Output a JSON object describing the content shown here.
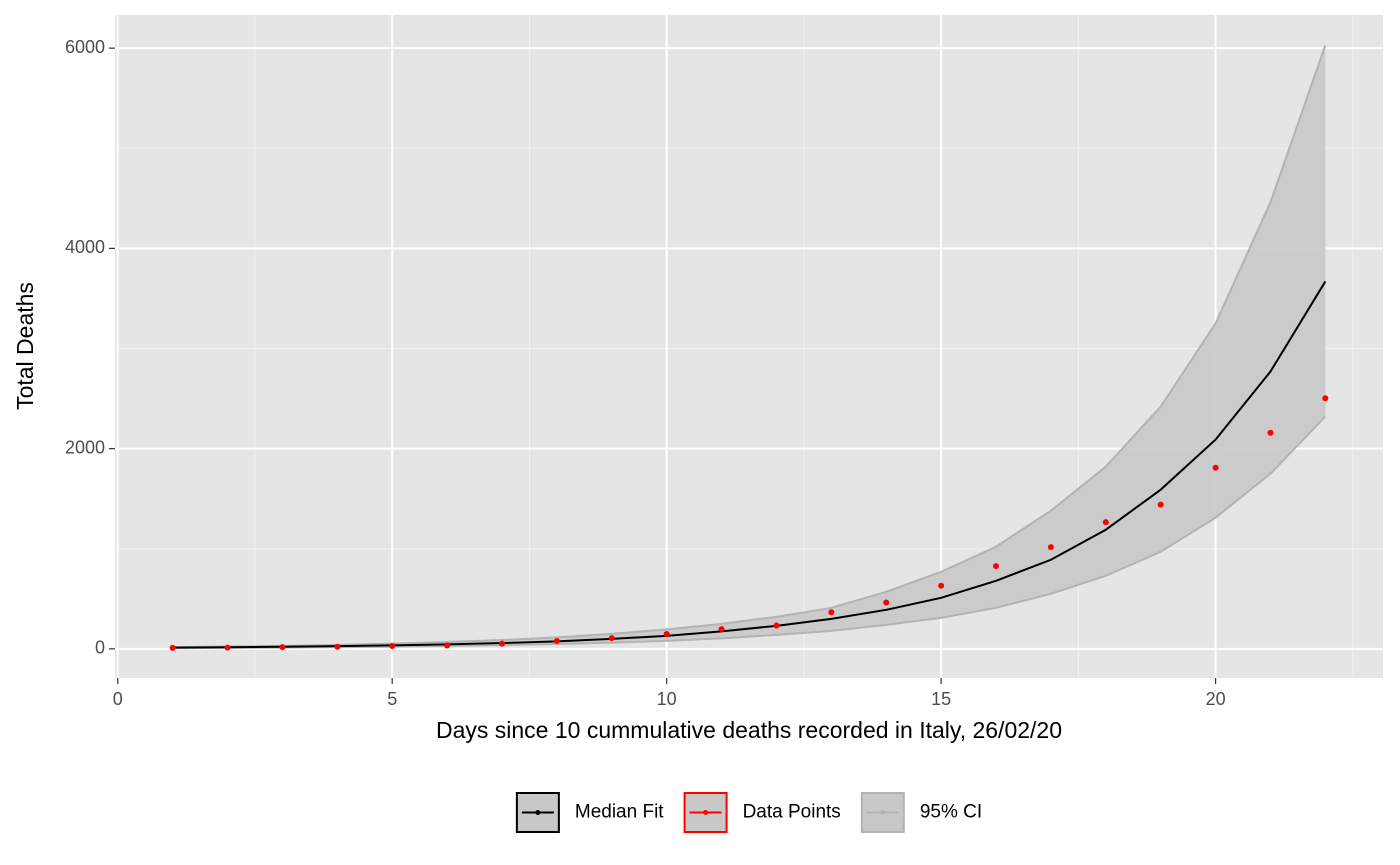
{
  "chart_data": {
    "type": "line",
    "x_label": "Days since 10 cummulative deaths recorded in Italy, 26/02/20",
    "y_label": "Total Deaths",
    "x": [
      1,
      2,
      3,
      4,
      5,
      6,
      7,
      8,
      9,
      10,
      11,
      12,
      13,
      14,
      15,
      16,
      17,
      18,
      19,
      20,
      21,
      22
    ],
    "series": [
      {
        "name": "Median Fit",
        "color": "#000000",
        "style": "line",
        "values": [
          12,
          16,
          21,
          27,
          35,
          45,
          58,
          75,
          100,
          130,
          175,
          230,
          300,
          390,
          510,
          680,
          890,
          1190,
          1590,
          2090,
          2770,
          3670
        ]
      },
      {
        "name": "Data Points",
        "color": "#ff0000",
        "style": "points",
        "values": [
          10,
          12,
          17,
          21,
          29,
          34,
          52,
          79,
          107,
          148,
          197,
          233,
          366,
          463,
          631,
          827,
          1016,
          1266,
          1441,
          1809,
          2158,
          2503
        ]
      },
      {
        "name": "95% CI",
        "color": "#b3b3b3",
        "fill": "#c8c8c8",
        "style": "band",
        "lower": [
          8,
          10,
          13,
          17,
          22,
          29,
          37,
          48,
          62,
          80,
          105,
          140,
          180,
          240,
          310,
          410,
          550,
          730,
          970,
          1310,
          1750,
          2320
        ],
        "upper": [
          17,
          23,
          30,
          40,
          52,
          68,
          88,
          115,
          150,
          195,
          250,
          320,
          410,
          570,
          770,
          1020,
          1380,
          1820,
          2420,
          3250,
          4460,
          6030
        ]
      }
    ],
    "xlim": [
      -0.05,
      23.05
    ],
    "xticks": [
      0,
      5,
      10,
      15,
      20
    ],
    "ylim": [
      -291,
      6331
    ],
    "yticks": [
      0,
      2000,
      4000,
      6000
    ],
    "grid": true,
    "legend": "bottom"
  }
}
